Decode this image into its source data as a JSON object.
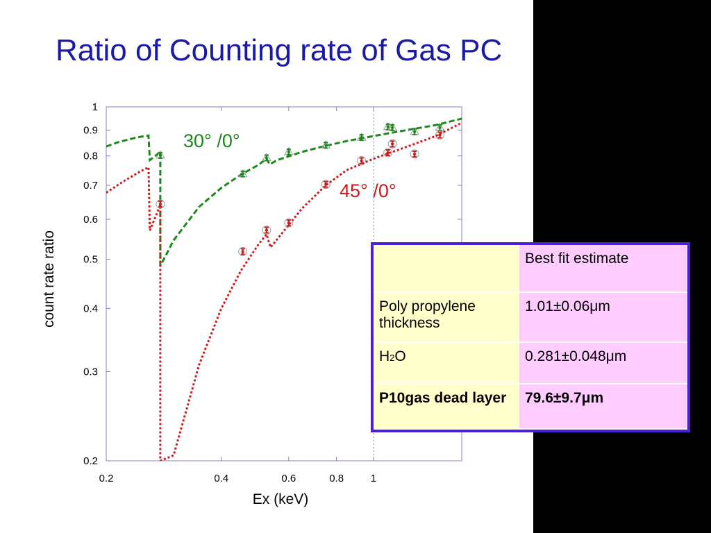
{
  "slide": {
    "title": "Ratio of Counting rate of Gas PC"
  },
  "chart_data": {
    "type": "scatter",
    "xlabel": "Ex (keV)",
    "ylabel": "count rate ratio",
    "x_scale": "log",
    "y_scale": "log",
    "xlim": [
      0.2,
      1.7
    ],
    "ylim": [
      0.2,
      1
    ],
    "x_ticks": [
      {
        "v": 0.2,
        "label": "0.2"
      },
      {
        "v": 0.4,
        "label": "0.4"
      },
      {
        "v": 0.6,
        "label": "0.6"
      },
      {
        "v": 0.8,
        "label": "0.8"
      },
      {
        "v": 1,
        "label": "1"
      }
    ],
    "y_ticks": [
      {
        "v": 0.2,
        "label": "0.2"
      },
      {
        "v": 0.3,
        "label": "0.3"
      },
      {
        "v": 0.4,
        "label": "0.4"
      },
      {
        "v": 0.5,
        "label": "0.5"
      },
      {
        "v": 0.6,
        "label": "0.6"
      },
      {
        "v": 0.7,
        "label": "0.7"
      },
      {
        "v": 0.8,
        "label": "0.8"
      },
      {
        "v": 0.9,
        "label": "0.9"
      },
      {
        "v": 1,
        "label": "1"
      }
    ],
    "series": [
      {
        "name": "30°/0°",
        "color": "#1a8a1a",
        "points": [
          [
            0.277,
            0.802
          ],
          [
            0.455,
            0.737
          ],
          [
            0.525,
            0.793
          ],
          [
            0.6,
            0.815
          ],
          [
            0.75,
            0.84
          ],
          [
            0.93,
            0.87
          ],
          [
            1.09,
            0.913
          ],
          [
            1.12,
            0.91
          ],
          [
            1.28,
            0.893
          ],
          [
            1.49,
            0.91
          ]
        ],
        "fit": [
          [
            0.2,
            0.835
          ],
          [
            0.215,
            0.852
          ],
          [
            0.24,
            0.87
          ],
          [
            0.258,
            0.878
          ],
          [
            0.26,
            0.785
          ],
          [
            0.277,
            0.815
          ],
          [
            0.277,
            0.485
          ],
          [
            0.3,
            0.545
          ],
          [
            0.35,
            0.635
          ],
          [
            0.4,
            0.692
          ],
          [
            0.45,
            0.735
          ],
          [
            0.5,
            0.768
          ],
          [
            0.525,
            0.79
          ],
          [
            0.535,
            0.77
          ],
          [
            0.56,
            0.785
          ],
          [
            0.65,
            0.815
          ],
          [
            0.75,
            0.838
          ],
          [
            0.85,
            0.856
          ],
          [
            1.0,
            0.876
          ],
          [
            1.2,
            0.898
          ],
          [
            1.45,
            0.92
          ],
          [
            1.7,
            0.948
          ]
        ]
      },
      {
        "name": "45°/0°",
        "color": "#cc1a1a",
        "points": [
          [
            0.277,
            0.643
          ],
          [
            0.455,
            0.518
          ],
          [
            0.525,
            0.571
          ],
          [
            0.6,
            0.59
          ],
          [
            0.75,
            0.703
          ],
          [
            0.93,
            0.783
          ],
          [
            1.09,
            0.812
          ],
          [
            1.12,
            0.845
          ],
          [
            1.28,
            0.807
          ],
          [
            1.49,
            0.88
          ]
        ],
        "fit": [
          [
            0.2,
            0.677
          ],
          [
            0.22,
            0.71
          ],
          [
            0.245,
            0.745
          ],
          [
            0.258,
            0.76
          ],
          [
            0.26,
            0.57
          ],
          [
            0.277,
            0.64
          ],
          [
            0.277,
            0.195
          ],
          [
            0.3,
            0.205
          ],
          [
            0.35,
            0.31
          ],
          [
            0.4,
            0.4
          ],
          [
            0.45,
            0.475
          ],
          [
            0.5,
            0.535
          ],
          [
            0.525,
            0.56
          ],
          [
            0.538,
            0.528
          ],
          [
            0.56,
            0.548
          ],
          [
            0.65,
            0.63
          ],
          [
            0.75,
            0.7
          ],
          [
            0.85,
            0.75
          ],
          [
            1.0,
            0.79
          ],
          [
            1.2,
            0.83
          ],
          [
            1.45,
            0.875
          ],
          [
            1.7,
            0.93
          ]
        ]
      }
    ],
    "annotations": [
      {
        "text": "30°  /0°",
        "color": "#1a8a1a"
      },
      {
        "text": "45°  /0°",
        "color": "#cc1a1a"
      }
    ]
  },
  "table": {
    "header": [
      "",
      "Best fit estimate"
    ],
    "rows": [
      {
        "param": "Poly propylene thickness",
        "value": "1.01±0.06μm"
      },
      {
        "param_main": "H",
        "param_sub": "2",
        "param_tail": "O",
        "value": "0.281±0.048μm"
      },
      {
        "param": "P10gas dead layer",
        "value": "79.6±9.7μm"
      }
    ]
  }
}
